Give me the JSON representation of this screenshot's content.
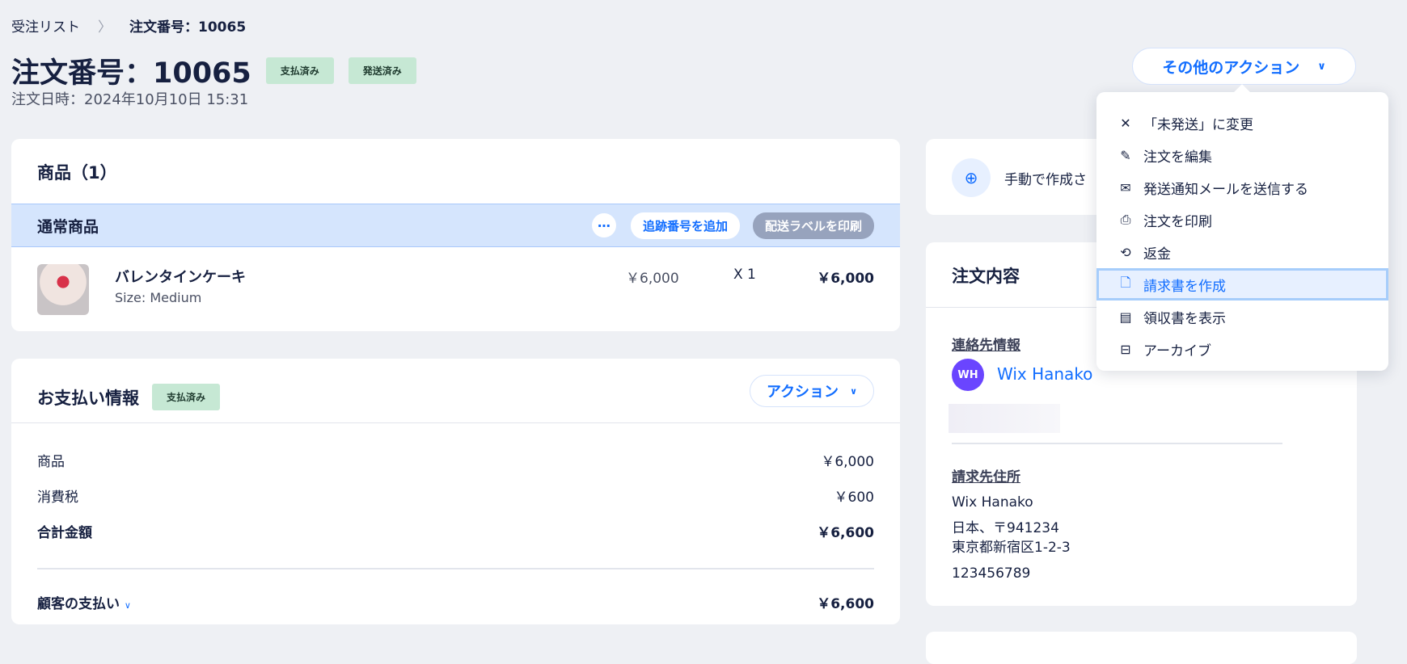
{
  "breadcrumb": {
    "parent": "受注リスト",
    "current": "注文番号：10065"
  },
  "header": {
    "title": "注文番号：10065",
    "badges": [
      "支払済み",
      "発送済み"
    ],
    "date": "注文日時：2024年10月10日 15:31",
    "more_actions": "その他のアクション"
  },
  "items_card": {
    "title": "商品（1）",
    "group": "通常商品",
    "add_tracking": "追跡番号を追加",
    "print_label": "配送ラベルを印刷",
    "product": {
      "name": "バレンタインケーキ",
      "option": "Size: Medium",
      "price": "￥6,000",
      "qty": "X 1",
      "total": "￥6,000"
    }
  },
  "payment_card": {
    "title": "お支払い情報",
    "badge": "支払済み",
    "action": "アクション",
    "rows": [
      {
        "label": "商品",
        "value": "￥6,000"
      },
      {
        "label": "消費税",
        "value": "￥600"
      },
      {
        "label": "合計金額",
        "value": "￥6,600"
      }
    ],
    "customer_paid": {
      "label": "顧客の支払い",
      "value": "￥6,600"
    }
  },
  "manual_card": {
    "text": "手動で作成さ"
  },
  "order_card": {
    "title": "注文内容",
    "contact_label": "連絡先情報",
    "avatar": "WH",
    "contact_name": "Wix Hanako",
    "billing_label": "請求先住所",
    "billing": [
      "Wix Hanako",
      "日本、〒941234",
      "東京都新宿区1-2-3",
      "123456789"
    ]
  },
  "menu": {
    "items": [
      {
        "label": "「未発送」に変更",
        "icon": "close-icon"
      },
      {
        "label": "注文を編集",
        "icon": "edit-icon"
      },
      {
        "label": "発送通知メールを送信する",
        "icon": "mail-icon"
      },
      {
        "label": "注文を印刷",
        "icon": "print-icon"
      },
      {
        "label": "返金",
        "icon": "refund-icon"
      },
      {
        "label": "請求書を作成",
        "icon": "invoice-icon",
        "selected": true
      },
      {
        "label": "領収書を表示",
        "icon": "receipt-icon"
      },
      {
        "label": "アーカイブ",
        "icon": "archive-icon"
      }
    ]
  },
  "colors": {
    "accent": "#116dff",
    "paid_badge": "#c6e8d4",
    "band": "#d5e5fd",
    "avatar": "#6a45ff"
  }
}
